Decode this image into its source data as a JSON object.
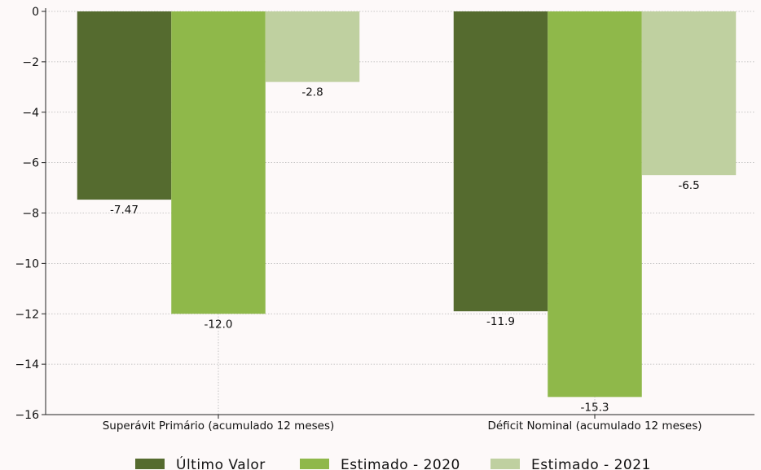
{
  "chart_data": {
    "type": "bar",
    "title": "",
    "xlabel": "",
    "ylabel": "",
    "categories": [
      "Superávit Primário (acumulado 12 meses)",
      "Déficit Nominal (acumulado 12 meses)"
    ],
    "series": [
      {
        "name": "Último Valor",
        "color": "#556b2f",
        "values": [
          -7.47,
          -11.9
        ],
        "labels": [
          "-7.47",
          "-11.9"
        ]
      },
      {
        "name": "Estimado - 2020",
        "color": "#8fb84a",
        "values": [
          -12.0,
          -15.3
        ],
        "labels": [
          "-12.0",
          "-15.3"
        ]
      },
      {
        "name": "Estimado - 2021",
        "color": "#bfd0a0",
        "values": [
          -2.8,
          -6.5
        ],
        "labels": [
          "-2.8",
          "-6.5"
        ]
      }
    ],
    "ylim": [
      -16,
      0
    ],
    "yticks": [
      0,
      -2,
      -4,
      -6,
      -8,
      -10,
      -12,
      -14,
      -16
    ],
    "ytick_labels": [
      "0",
      "−2",
      "−4",
      "−6",
      "−8",
      "−10",
      "−12",
      "−14",
      "−16"
    ],
    "grid": true,
    "legend_position": "bottom"
  }
}
